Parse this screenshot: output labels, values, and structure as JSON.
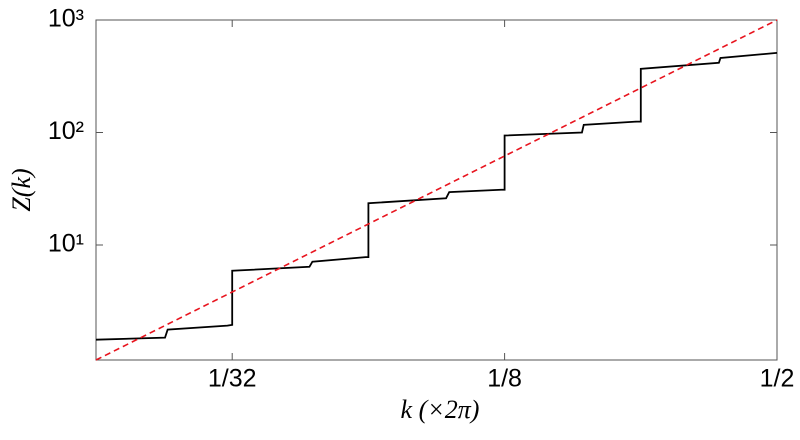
{
  "chart_data": {
    "type": "line",
    "xlabel": "k (×2π)",
    "ylabel": "Z(k)",
    "xscale": "log",
    "yscale": "log",
    "xlim": [
      0.015625,
      0.5
    ],
    "ylim": [
      0.95,
      1000
    ],
    "xticks": [
      {
        "value": 0.03125,
        "label": "1/32"
      },
      {
        "value": 0.125,
        "label": "1/8"
      },
      {
        "value": 0.5,
        "label": "1/2"
      }
    ],
    "yticks": [
      {
        "value": 10,
        "label": "10¹"
      },
      {
        "value": 100,
        "label": "10²"
      },
      {
        "value": 1000,
        "label": "10³"
      }
    ],
    "series": [
      {
        "color": "#000000",
        "linestyle": "solid",
        "x": [
          0.015625,
          0.0222,
          0.0225,
          0.0305,
          0.03125,
          0.03125,
          0.0463,
          0.047,
          0.0616,
          0.0625,
          0.0625,
          0.0928,
          0.0943,
          0.1228,
          0.125,
          0.125,
          0.1853,
          0.187,
          0.245,
          0.25,
          0.25,
          0.372,
          0.375,
          0.5
        ],
        "values": [
          1.44,
          1.5,
          1.77,
          1.92,
          1.95,
          5.9,
          6.4,
          7.1,
          7.8,
          7.8,
          23.5,
          26,
          29.5,
          31,
          31,
          94,
          100,
          117,
          125,
          125,
          368,
          417,
          460,
          510
        ]
      },
      {
        "color": "#e8141e",
        "linestyle": "dashed",
        "x": [
          0.015625,
          0.5
        ],
        "values": [
          0.95,
          1000
        ]
      }
    ]
  }
}
